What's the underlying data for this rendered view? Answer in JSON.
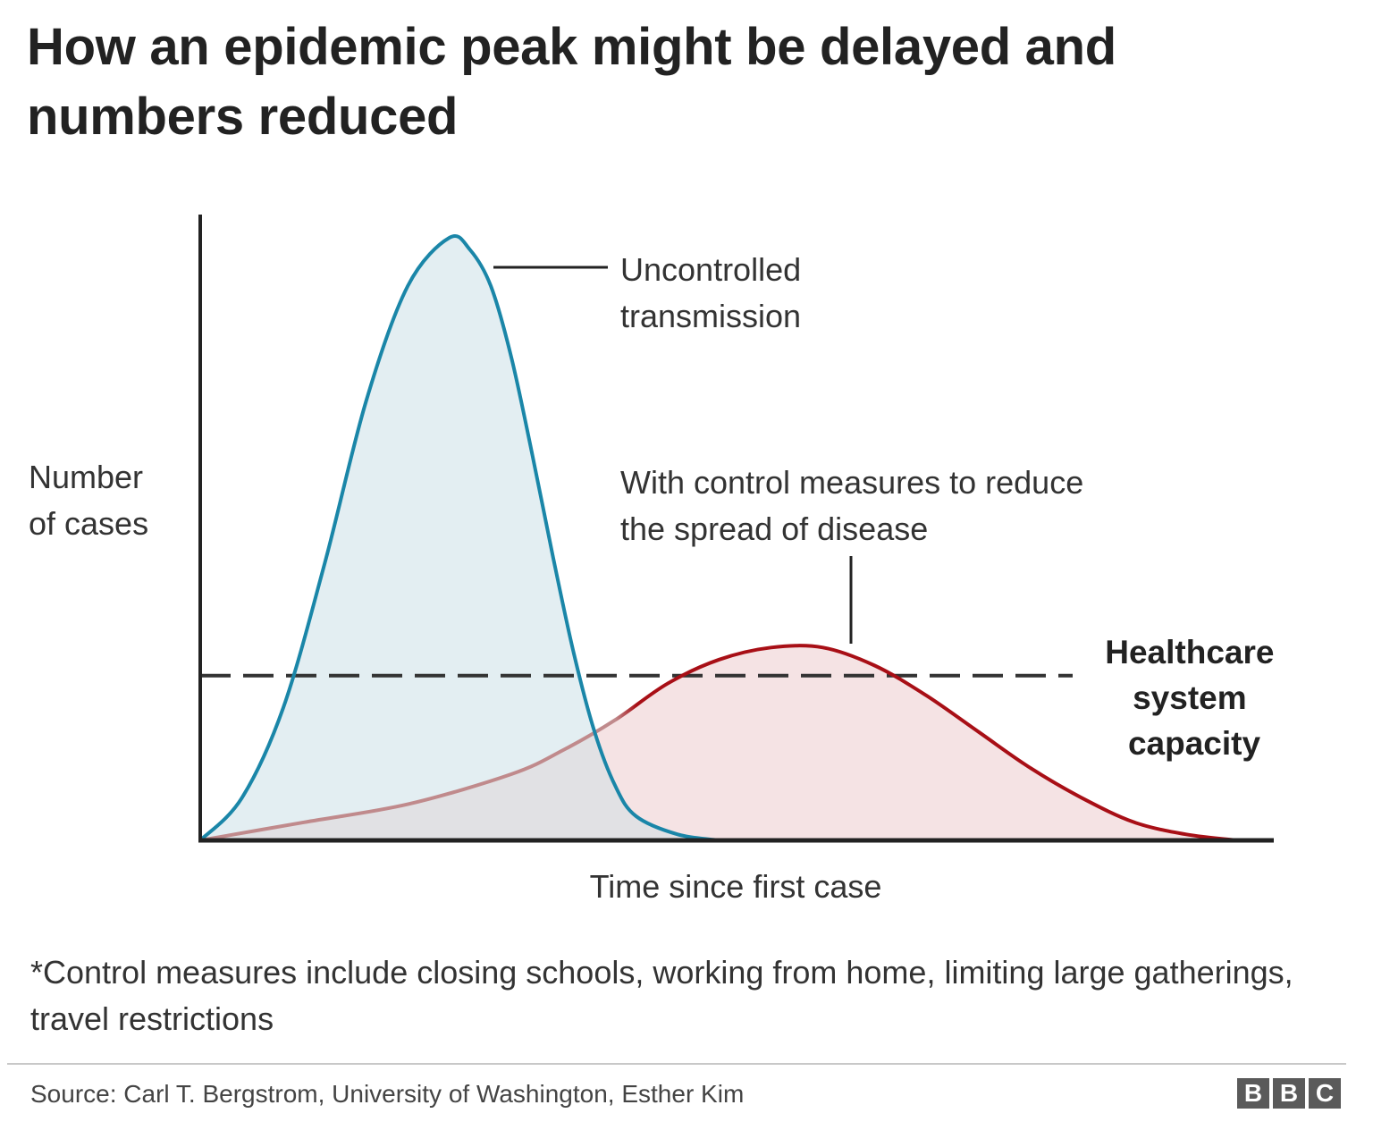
{
  "title": "How an epidemic peak might be delayed and numbers reduced",
  "note": "*Control measures include closing schools, working from home, limiting large gatherings, travel restrictions",
  "source": "Source: Carl T. Bergstrom, University of Washington, Esther Kim",
  "logo": [
    "B",
    "B",
    "C"
  ],
  "chart_data": {
    "type": "area",
    "ylabel": [
      "Number",
      "of cases"
    ],
    "xlabel": "Time since first case",
    "xlim": [
      0,
      100
    ],
    "ylim": [
      0,
      100
    ],
    "grid": false,
    "colors": {
      "uncontrolled_line": "#1a86a8",
      "uncontrolled_fill": "#e3eef2",
      "controlled_line": "#a80f16",
      "controlled_fill": "#f5e3e4",
      "overlap_fill": "#e1e1e4",
      "capacity_line": "#333333"
    },
    "series": [
      {
        "label": [
          "Uncontrolled",
          "transmission"
        ],
        "x": [
          0,
          4,
          8,
          12,
          16,
          20,
          24,
          26,
          28,
          30,
          32,
          34,
          36,
          38,
          40,
          42,
          46,
          50
        ],
        "y": [
          0,
          7,
          22,
          46,
          73,
          92,
          100,
          98,
          92,
          80,
          64,
          47,
          31,
          18,
          9,
          4,
          1,
          0
        ]
      },
      {
        "label": [
          "With control measures to reduce",
          "the spread of disease"
        ],
        "x": [
          0,
          10,
          20,
          30,
          35,
          40,
          45,
          50,
          55,
          60,
          65,
          70,
          75,
          80,
          85,
          90,
          95,
          100
        ],
        "y": [
          0,
          3,
          6,
          11,
          15,
          20,
          26,
          30,
          32,
          32,
          29,
          24,
          18,
          12,
          7,
          3,
          1,
          0
        ]
      }
    ],
    "capacity": {
      "label": [
        "Healthcare",
        "system",
        "capacity"
      ],
      "y": 30
    }
  }
}
